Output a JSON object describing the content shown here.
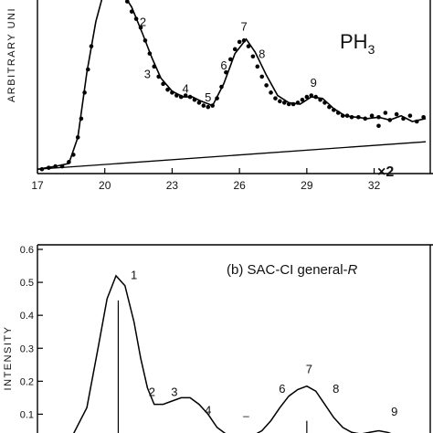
{
  "chart_data": [
    {
      "type": "scatter",
      "panel": "top",
      "title": "PH3",
      "title_main": "PH",
      "title_sub": "3",
      "ylabel": "ARBITRARY UNI",
      "xlabel": "",
      "x_ticks": [
        "17",
        "20",
        "23",
        "26",
        "29",
        "32"
      ],
      "xlim": [
        17,
        34.5
      ],
      "ylim": [
        0,
        1.2
      ],
      "scale_label": "×2",
      "peak_labels": [
        {
          "text": "2",
          "x": 21.7,
          "y": 1.02
        },
        {
          "text": "3",
          "x": 21.9,
          "y": 0.66
        },
        {
          "text": "4",
          "x": 23.6,
          "y": 0.56
        },
        {
          "text": "5",
          "x": 24.6,
          "y": 0.5
        },
        {
          "text": "6",
          "x": 25.3,
          "y": 0.72
        },
        {
          "text": "7",
          "x": 26.2,
          "y": 0.99
        },
        {
          "text": "8",
          "x": 27.0,
          "y": 0.8
        },
        {
          "text": "9",
          "x": 29.3,
          "y": 0.6
        }
      ],
      "curve_x": [
        17.0,
        17.8,
        18.4,
        18.8,
        19.2,
        19.6,
        20.0,
        20.6,
        21.2,
        21.7,
        22.1,
        22.5,
        23.0,
        23.5,
        23.9,
        24.3,
        24.8,
        25.3,
        25.8,
        26.3,
        26.7,
        27.2,
        27.7,
        28.2,
        28.7,
        29.2,
        29.7,
        30.2,
        30.7,
        31.2,
        31.7,
        32.2,
        32.7,
        33.2,
        33.7,
        34.3
      ],
      "curve_y": [
        0.03,
        0.05,
        0.07,
        0.25,
        0.7,
        1.05,
        1.28,
        1.3,
        1.15,
        0.96,
        0.8,
        0.66,
        0.57,
        0.53,
        0.53,
        0.5,
        0.47,
        0.62,
        0.83,
        0.93,
        0.84,
        0.68,
        0.54,
        0.49,
        0.48,
        0.53,
        0.52,
        0.45,
        0.4,
        0.39,
        0.38,
        0.39,
        0.37,
        0.4,
        0.36,
        0.38
      ],
      "points": [
        [
          17.2,
          0.03
        ],
        [
          17.5,
          0.04
        ],
        [
          17.8,
          0.05
        ],
        [
          18.1,
          0.05
        ],
        [
          18.4,
          0.08
        ],
        [
          18.6,
          0.13
        ],
        [
          18.8,
          0.25
        ],
        [
          18.95,
          0.38
        ],
        [
          19.1,
          0.56
        ],
        [
          19.25,
          0.72
        ],
        [
          19.4,
          0.88
        ],
        [
          21.0,
          1.19
        ],
        [
          21.2,
          1.12
        ],
        [
          21.4,
          1.07
        ],
        [
          21.6,
          1.01
        ],
        [
          21.8,
          0.92
        ],
        [
          22.0,
          0.83
        ],
        [
          22.2,
          0.74
        ],
        [
          22.4,
          0.67
        ],
        [
          22.6,
          0.62
        ],
        [
          22.8,
          0.58
        ],
        [
          23.0,
          0.56
        ],
        [
          23.2,
          0.54
        ],
        [
          23.4,
          0.53
        ],
        [
          23.6,
          0.54
        ],
        [
          23.8,
          0.53
        ],
        [
          24.0,
          0.51
        ],
        [
          24.2,
          0.49
        ],
        [
          24.4,
          0.47
        ],
        [
          24.6,
          0.46
        ],
        [
          24.8,
          0.47
        ],
        [
          25.0,
          0.52
        ],
        [
          25.2,
          0.6
        ],
        [
          25.4,
          0.7
        ],
        [
          25.6,
          0.79
        ],
        [
          25.8,
          0.86
        ],
        [
          26.0,
          0.91
        ],
        [
          26.2,
          0.92
        ],
        [
          26.4,
          0.88
        ],
        [
          26.6,
          0.81
        ],
        [
          26.8,
          0.74
        ],
        [
          27.0,
          0.67
        ],
        [
          27.2,
          0.61
        ],
        [
          27.4,
          0.56
        ],
        [
          27.6,
          0.52
        ],
        [
          27.8,
          0.5
        ],
        [
          28.0,
          0.49
        ],
        [
          28.2,
          0.48
        ],
        [
          28.4,
          0.48
        ],
        [
          28.6,
          0.49
        ],
        [
          28.8,
          0.51
        ],
        [
          29.0,
          0.53
        ],
        [
          29.2,
          0.54
        ],
        [
          29.4,
          0.53
        ],
        [
          29.6,
          0.51
        ],
        [
          29.8,
          0.49
        ],
        [
          30.0,
          0.46
        ],
        [
          30.2,
          0.44
        ],
        [
          30.4,
          0.42
        ],
        [
          30.6,
          0.4
        ],
        [
          30.8,
          0.4
        ],
        [
          31.0,
          0.39
        ],
        [
          31.3,
          0.39
        ],
        [
          31.6,
          0.38
        ],
        [
          31.9,
          0.4
        ],
        [
          32.2,
          0.39
        ],
        [
          32.5,
          0.42
        ],
        [
          32.7,
          0.37
        ],
        [
          33.0,
          0.41
        ],
        [
          33.3,
          0.38
        ],
        [
          33.6,
          0.4
        ],
        [
          33.9,
          0.36
        ],
        [
          34.2,
          0.39
        ],
        [
          32.2,
          0.33
        ]
      ],
      "baseline": {
        "x": [
          17.0,
          34.3
        ],
        "y": [
          0.03,
          0.22
        ]
      }
    },
    {
      "type": "line",
      "panel": "bottom",
      "title": "(b) SAC-CI general-R",
      "title_prefix": "(b) SAC-CI general-",
      "title_italic": "R",
      "ylabel": "INTENSITY",
      "xlabel": "",
      "y_ticks": [
        "0.6",
        "0.5",
        "0.4",
        "0.3",
        "0.2",
        "0.1"
      ],
      "xlim": [
        17,
        34.5
      ],
      "ylim": [
        0,
        0.6
      ],
      "peak_labels": [
        {
          "text": "1",
          "x": 21.3,
          "y": 0.51
        },
        {
          "text": "2",
          "x": 22.1,
          "y": 0.155
        },
        {
          "text": "3",
          "x": 23.1,
          "y": 0.155
        },
        {
          "text": "4",
          "x": 24.6,
          "y": 0.1
        },
        {
          "text": "6",
          "x": 27.9,
          "y": 0.165
        },
        {
          "text": "7",
          "x": 29.1,
          "y": 0.225
        },
        {
          "text": "8",
          "x": 30.3,
          "y": 0.165
        },
        {
          "text": "9",
          "x": 32.9,
          "y": 0.095
        }
      ],
      "sticks": [
        {
          "x": 20.6,
          "y": 0.445
        },
        {
          "x": 29.0,
          "y": 0.08
        }
      ],
      "curve_x": [
        17.0,
        17.8,
        18.6,
        19.2,
        19.7,
        20.1,
        20.5,
        20.9,
        21.3,
        21.6,
        21.9,
        22.2,
        22.6,
        23.0,
        23.4,
        23.8,
        24.2,
        24.6,
        25.0,
        25.4,
        25.8,
        26.2,
        26.6,
        27.0,
        27.4,
        27.8,
        28.2,
        28.6,
        29.0,
        29.4,
        29.8,
        30.2,
        30.6,
        31.0,
        31.4,
        31.8,
        32.2,
        32.6,
        33.0
      ],
      "curve_y": [
        0.0,
        0.01,
        0.04,
        0.12,
        0.3,
        0.45,
        0.52,
        0.49,
        0.38,
        0.27,
        0.18,
        0.13,
        0.13,
        0.14,
        0.15,
        0.15,
        0.13,
        0.1,
        0.06,
        0.04,
        0.03,
        0.03,
        0.035,
        0.05,
        0.08,
        0.12,
        0.155,
        0.175,
        0.185,
        0.17,
        0.13,
        0.09,
        0.06,
        0.045,
        0.04,
        0.045,
        0.05,
        0.045,
        0.035
      ],
      "minus_label": {
        "text": "–",
        "x": 26.3,
        "y": 0.085
      }
    }
  ]
}
